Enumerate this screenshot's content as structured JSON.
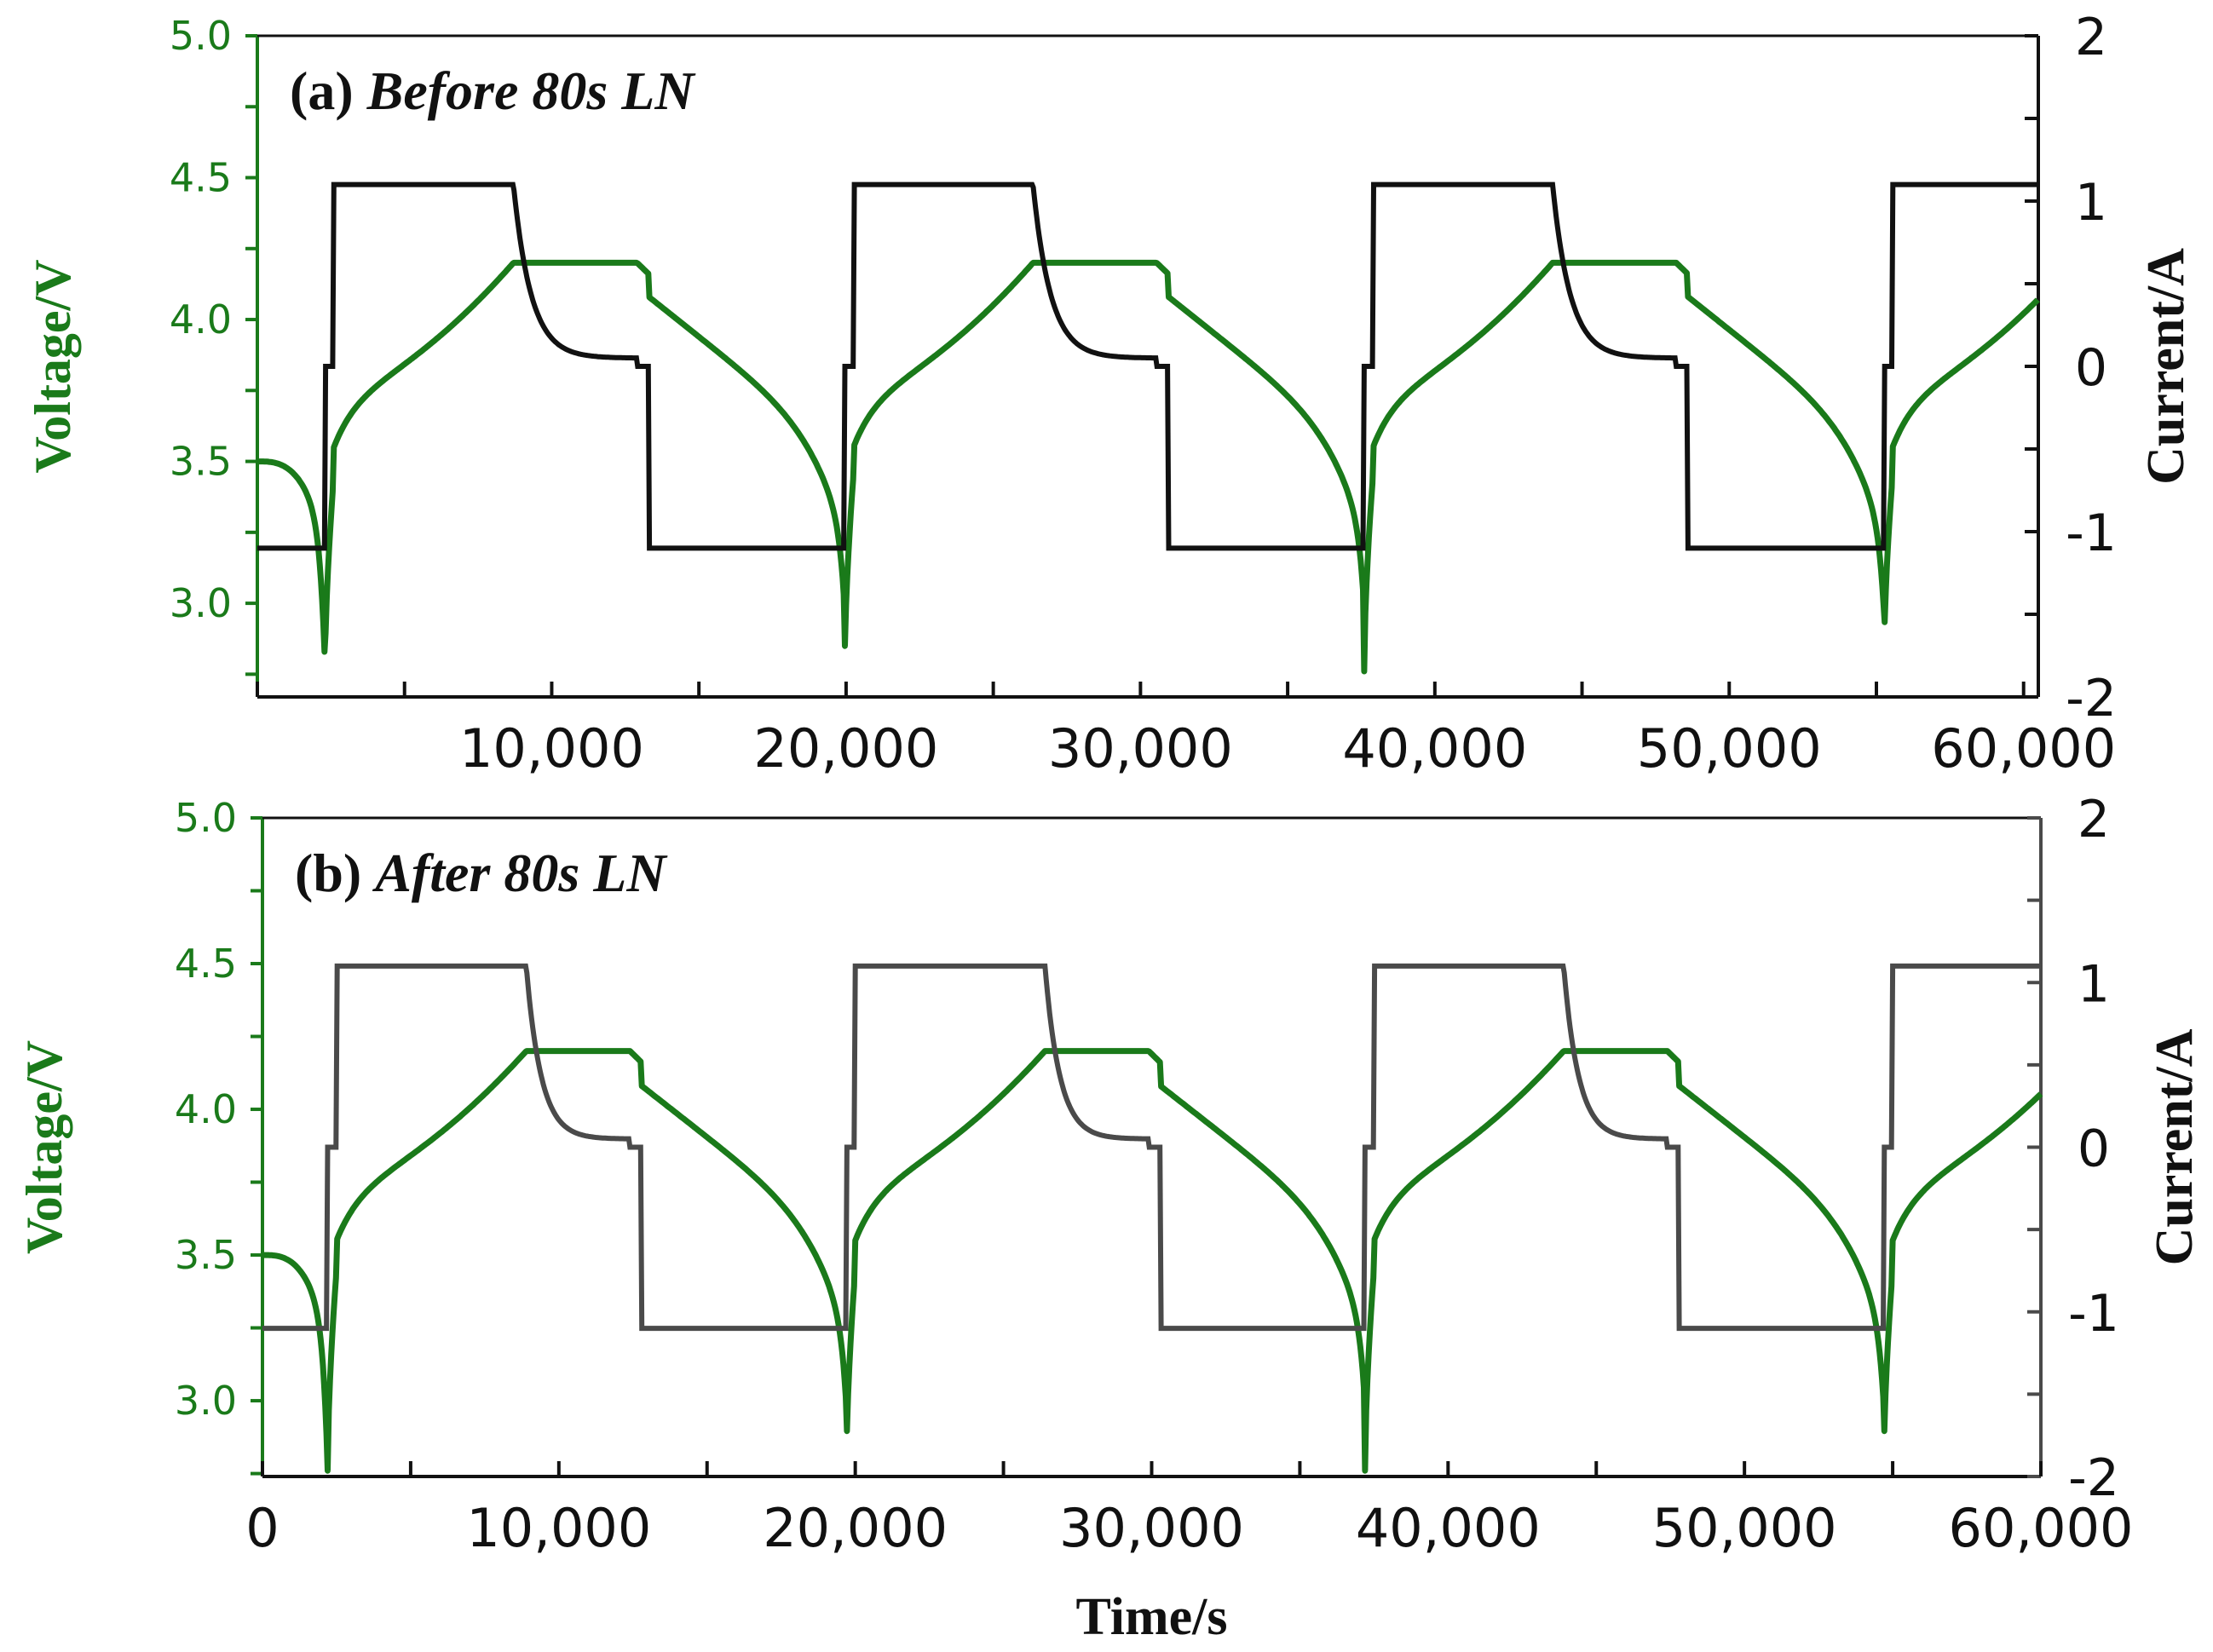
{
  "chart_data": [
    {
      "id": "panel-a",
      "type": "line",
      "title_prefix": "(a)",
      "title": "Before 80s LN",
      "ylabel": "Voltage/V",
      "y2label": "Current/A",
      "xlabel": "",
      "xlim": [
        0,
        60500
      ],
      "ylim": [
        2.67,
        5.0
      ],
      "y2lim": [
        -2.0,
        2.0
      ],
      "xticks": [
        0,
        10000,
        20000,
        30000,
        40000,
        50000,
        60000
      ],
      "xtick_labels": [
        "",
        "10,000",
        "20,000",
        "30,000",
        "40,000",
        "50,000",
        "60,000"
      ],
      "yticks": [
        3.0,
        3.5,
        4.0,
        4.5,
        5.0
      ],
      "ytick_labels": [
        "3.0",
        "3.5",
        "4.0",
        "4.5",
        "5.0"
      ],
      "y2ticks": [
        -2,
        -1,
        0,
        1,
        2
      ],
      "y2tick_labels": [
        "-2",
        "-1",
        "0",
        "1",
        "2"
      ],
      "cycle": {
        "period": 17650,
        "first_charge_start": 2300,
        "preconditioning_end": 2600,
        "cv_start": 8700,
        "rest_start": 12900,
        "discharge_start": 13300,
        "discharge_end": 19950
      },
      "series": [
        {
          "name": "Voltage",
          "axis": "left",
          "color": "#1a7a1a",
          "v_start": 3.5,
          "v_min": 2.76,
          "v_max": 4.2,
          "v_knee": 3.75
        },
        {
          "name": "Current",
          "axis": "right",
          "color": "#111111",
          "charge": 1.1,
          "precharge": 0.0,
          "rest": 0.0,
          "discharge": -1.1
        }
      ]
    },
    {
      "id": "panel-b",
      "type": "line",
      "title_prefix": "(b)",
      "title": "After 80s LN",
      "ylabel": "Voltage/V",
      "y2label": "Current/A",
      "xlabel": "Time/s",
      "xlim": [
        0,
        60000
      ],
      "ylim": [
        2.74,
        5.0
      ],
      "y2lim": [
        -2.0,
        2.0
      ],
      "xticks": [
        0,
        10000,
        20000,
        30000,
        40000,
        50000,
        60000
      ],
      "xtick_labels": [
        "0",
        "10,000",
        "20,000",
        "30,000",
        "40,000",
        "50,000",
        "60,000"
      ],
      "yticks": [
        3.0,
        3.5,
        4.0,
        4.5,
        5.0
      ],
      "ytick_labels": [
        "3.0",
        "3.5",
        "4.0",
        "4.5",
        "5.0"
      ],
      "y2ticks": [
        -2,
        -1,
        0,
        1,
        2
      ],
      "y2tick_labels": [
        "-2",
        "-1",
        "0",
        "1",
        "2"
      ],
      "cycle": {
        "period": 17500,
        "first_charge_start": 2200,
        "preconditioning_end": 2500,
        "cv_start": 8900,
        "rest_start": 12400,
        "discharge_start": 12800,
        "discharge_end": 19700
      },
      "series": [
        {
          "name": "Voltage",
          "axis": "left",
          "color": "#1a7a1a",
          "v_start": 3.5,
          "v_min": 2.76,
          "v_max": 4.2,
          "v_knee": 3.75
        },
        {
          "name": "Current",
          "axis": "right",
          "color": "#4a4a4a",
          "charge": 1.1,
          "precharge": 0.0,
          "rest": 0.0,
          "discharge": -1.1
        }
      ]
    }
  ],
  "colors": {
    "voltage": "#1a7a1a",
    "current_a": "#111111",
    "current_b": "#4a4a4a",
    "axis_left": "#1a7a1a",
    "axis_right_a": "#111111",
    "axis_right_b": "#4a4a4a"
  }
}
